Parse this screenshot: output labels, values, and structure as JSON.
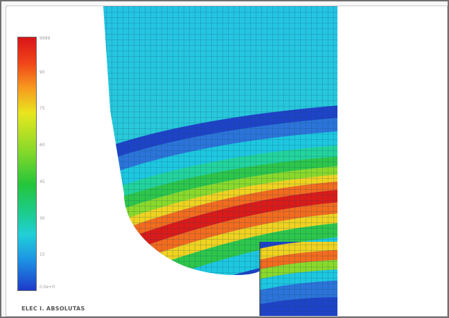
{
  "figure": {
    "legend": {
      "ticks": [
        "9999",
        "90",
        "75",
        "60",
        "45",
        "30",
        "15",
        "0.0e+0"
      ],
      "colors": [
        "#d91417",
        "#f0441a",
        "#f79a1f",
        "#e8e61e",
        "#86d92a",
        "#25c53a",
        "#1ccc92",
        "#21cfd8",
        "#1d93e3",
        "#1d3acb"
      ]
    },
    "caption": "ELEC I. ABSOLUTAS",
    "mesh_band_colors": [
      "#1f43c7",
      "#2c74d9",
      "#1ec7e0",
      "#23d39c",
      "#2ec64a",
      "#8ad92a",
      "#f0d21f",
      "#f36b1d",
      "#dc1a18",
      "#f36b1d",
      "#f0d21f",
      "#2ec64a",
      "#1ec7e0",
      "#1f43c7"
    ]
  }
}
